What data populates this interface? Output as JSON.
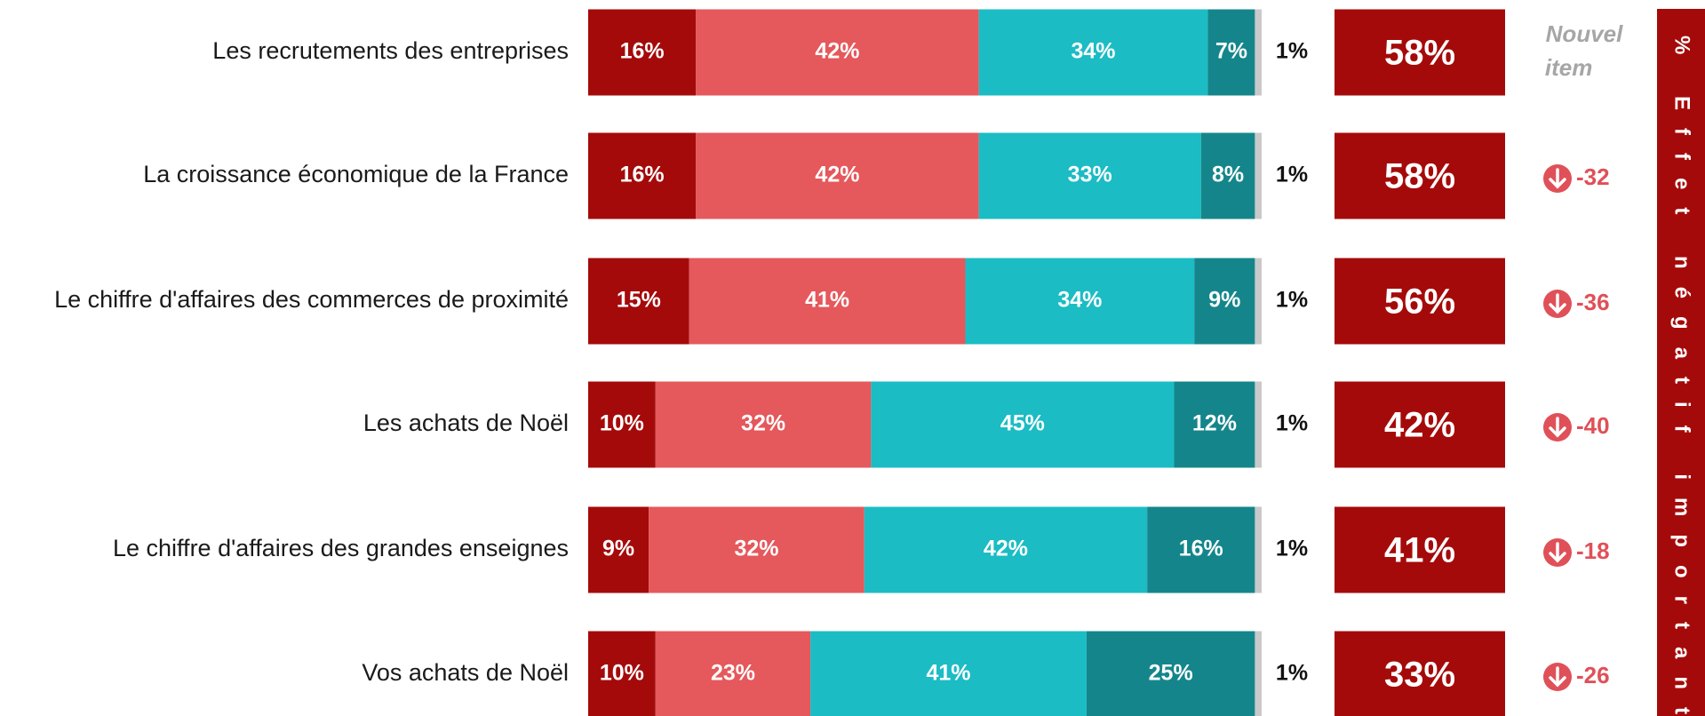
{
  "chart_data": {
    "type": "bar",
    "orientation": "horizontal",
    "stacked": true,
    "categories": [
      "Les recrutements des entreprises",
      "La croissance économique de la France",
      "Le chiffre d'affaires des commerces de proximité",
      "Les achats de Noël",
      "Le chiffre d'affaires des grandes enseignes",
      "Vos achats de Noël"
    ],
    "xlim": [
      0,
      100
    ],
    "series": [
      {
        "color": "#a50a0a",
        "values": [
          16,
          16,
          15,
          10,
          9,
          10
        ],
        "value_labels": [
          "16%",
          "16%",
          "15%",
          "10%",
          "9%",
          "10%"
        ]
      },
      {
        "color": "#e5585b",
        "values": [
          42,
          42,
          41,
          32,
          32,
          23
        ],
        "value_labels": [
          "42%",
          "42%",
          "41%",
          "32%",
          "32%",
          "23%"
        ]
      },
      {
        "color": "#1bbcc4",
        "values": [
          34,
          33,
          34,
          45,
          42,
          41
        ],
        "value_labels": [
          "34%",
          "33%",
          "34%",
          "45%",
          "42%",
          "41%"
        ]
      },
      {
        "color": "#14868b",
        "values": [
          7,
          8,
          9,
          12,
          16,
          25
        ],
        "value_labels": [
          "7%",
          "8%",
          "9%",
          "12%",
          "16%",
          "25%"
        ]
      },
      {
        "color": "#c9c9c9",
        "values": [
          1,
          1,
          1,
          1,
          1,
          1
        ],
        "value_labels": [
          "1%",
          "1%",
          "1%",
          "1%",
          "1%",
          "1%"
        ]
      }
    ],
    "totals": {
      "color": "#a50a0a",
      "values": [
        58,
        58,
        56,
        42,
        41,
        33
      ],
      "value_labels": [
        "58%",
        "58%",
        "56%",
        "42%",
        "41%",
        "33%"
      ]
    },
    "changes": [
      null,
      -32,
      -36,
      -40,
      -18,
      -26
    ],
    "new_item_label": "Nouvel item",
    "side_title": "% Effet négatif important"
  }
}
